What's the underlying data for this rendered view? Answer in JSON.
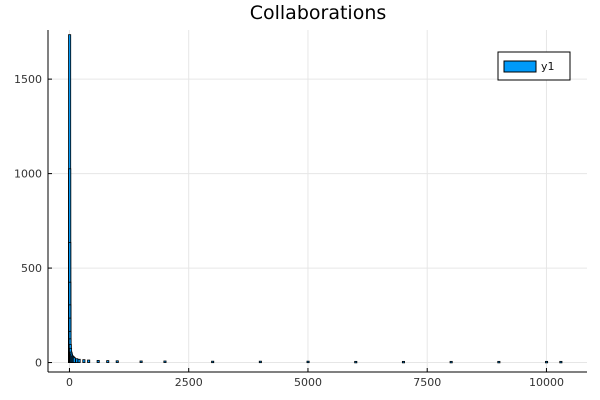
{
  "chart_data": {
    "type": "bar",
    "title": "Collaborations",
    "xlabel": "",
    "ylabel": "",
    "xlim": [
      -450,
      10850
    ],
    "ylim": [
      -50,
      1760
    ],
    "xticks": [
      0,
      2500,
      5000,
      7500,
      10000
    ],
    "xtick_labels": [
      "0",
      "2500",
      "5000",
      "7500",
      "10000"
    ],
    "yticks": [
      0,
      500,
      1000,
      1500
    ],
    "ytick_labels": [
      "0",
      "500",
      "1000",
      "1500"
    ],
    "grid": true,
    "legend": {
      "position": "top-right",
      "entries": [
        "y1"
      ]
    },
    "series": [
      {
        "name": "y1",
        "color": "#009af9",
        "x": [
          1,
          2,
          3,
          4,
          5,
          6,
          8,
          10,
          15,
          20,
          30,
          40,
          60,
          80,
          100,
          150,
          200,
          300,
          400,
          600,
          800,
          1000,
          1500,
          2000,
          3000,
          4000,
          5000,
          6000,
          7000,
          8000,
          9000,
          10000,
          10300
        ],
        "values": [
          1730,
          1020,
          630,
          420,
          300,
          230,
          160,
          120,
          90,
          70,
          50,
          40,
          30,
          25,
          20,
          15,
          12,
          10,
          8,
          6,
          5,
          4,
          3,
          3,
          2,
          2,
          2,
          1,
          1,
          1,
          1,
          1,
          1
        ]
      }
    ]
  }
}
